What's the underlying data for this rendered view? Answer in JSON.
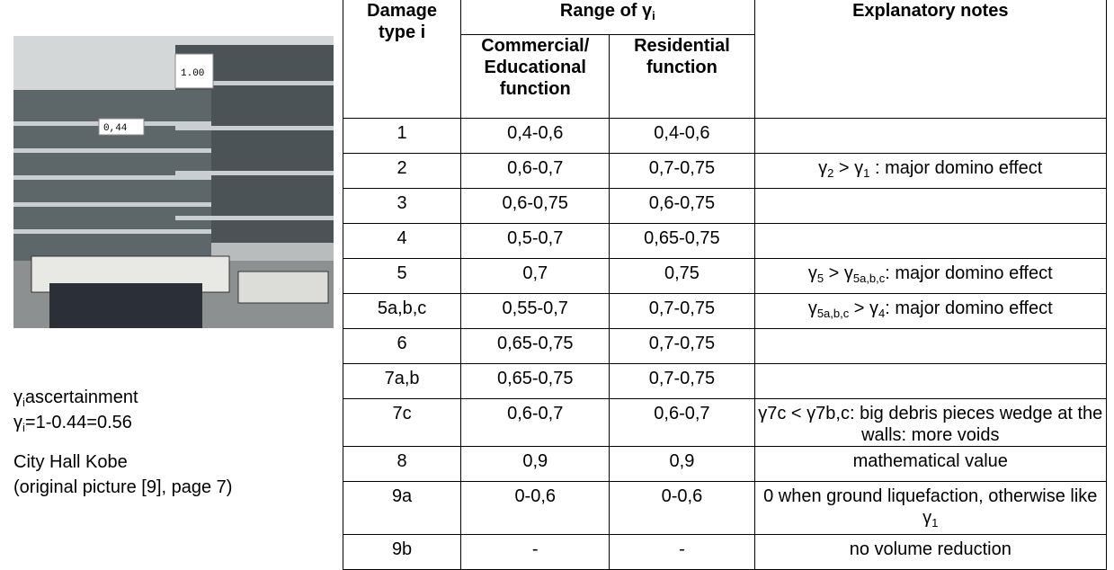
{
  "figure": {
    "tags": [
      "1.00",
      "0,44"
    ],
    "caption": [
      [
        {
          "sub": "γ"
        },
        "ascertainment"
      ],
      [
        {
          "sub": "γ"
        },
        "=1-0.44=0.56"
      ],
      [
        "City Hall Kobe"
      ],
      [
        "(original picture [9], page 7)"
      ]
    ]
  },
  "table": {
    "header": {
      "type": "Damage type i",
      "range": [
        "Range of γ",
        {
          "sub": "i"
        }
      ],
      "commercial": "Commercial/ Educational function",
      "residential": "Residential function",
      "notes": "Explanatory notes"
    },
    "rows": [
      [
        "1",
        "0,4-0,6",
        "0,4-0,6",
        null
      ],
      [
        "2",
        "0,6-0,7",
        "0,7-0,75",
        [
          "γ",
          {
            "sub": "2"
          },
          " > γ",
          {
            "sub": "1"
          },
          " : major domino effect"
        ]
      ],
      [
        "3",
        "0,6-0,75",
        "0,6-0,75",
        null
      ],
      [
        "4",
        "0,5-0,7",
        "0,65-0,75",
        null
      ],
      [
        "5",
        "0,7",
        "0,75",
        [
          "γ",
          {
            "sub": "5"
          },
          " > γ",
          {
            "sub": "5a,b,c"
          },
          ":  major domino effect"
        ]
      ],
      [
        "5a,b,c",
        "0,55-0,7",
        "0,7-0,75",
        [
          "γ",
          {
            "sub": "5a,b,c"
          },
          " > γ",
          {
            "sub": "4"
          },
          ":  major domino effect"
        ]
      ],
      [
        "6",
        "0,65-0,75",
        "0,7-0,75",
        null
      ],
      [
        "7a,b",
        "0,65-0,75",
        "0,7-0,75",
        null
      ],
      [
        "7c",
        "0,6-0,7",
        "0,6-0,7",
        [
          "γ7c < γ7b,c: big debris pieces wedge at the walls: more voids"
        ]
      ],
      [
        "8",
        "0,9",
        "0,9",
        [
          "mathematical value"
        ]
      ],
      [
        "9a",
        "0-0,6",
        "0-0,6",
        [
          "0 when ground liquefaction, otherwise like γ",
          {
            "sub": "1"
          }
        ]
      ],
      [
        "9b",
        "-",
        "-",
        [
          "no volume reduction"
        ]
      ]
    ]
  }
}
